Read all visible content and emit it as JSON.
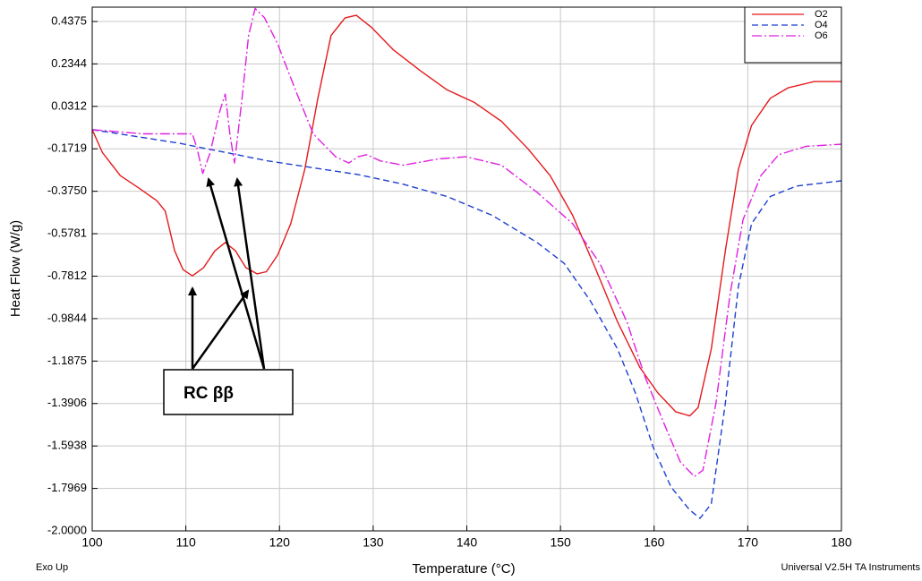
{
  "chart_data": {
    "type": "line",
    "x_label": "Temperature (°C)",
    "y_label": "Heat Flow (W/g)",
    "footer_left": "Exo Up",
    "footer_right": "Universal V2.5H TA Instruments",
    "annotation": "RC ββ",
    "xlim": [
      100,
      180
    ],
    "ylim": [
      -2.0,
      0.506
    ],
    "xticks": [
      100,
      110,
      120,
      130,
      140,
      150,
      160,
      170,
      180
    ],
    "yticks": [
      0.4375,
      0.2344,
      0.0312,
      -0.1719,
      {
        "value": -0.375,
        "label": "-0.3750"
      },
      -0.5781,
      -0.7812,
      -0.9844,
      -1.1875,
      -1.3906,
      -1.5938,
      -1.7969,
      {
        "value": -2.0,
        "label": "-2.0000"
      }
    ],
    "grid": true,
    "legend": "upper right",
    "series": [
      {
        "name": "O2",
        "color": "#e41a1c",
        "dash": "solid",
        "x": [
          100,
          101.1,
          103,
          105,
          106.9,
          107.8,
          108.8,
          109.7,
          110.7,
          111.9,
          113.1,
          114.2,
          115.3,
          116.4,
          117.6,
          118.6,
          119.8,
          121.2,
          122.7,
          124.1,
          125.5,
          127,
          128.2,
          129.8,
          132.2,
          135.1,
          137.9,
          140.8,
          143.7,
          146.5,
          148.9,
          151.3,
          153.7,
          156.1,
          158.5,
          160.4,
          162.3,
          163.8,
          164.7,
          166.1,
          167.6,
          169,
          170.4,
          172.4,
          174.3,
          177.1,
          180
        ],
        "values": [
          -0.08,
          -0.19,
          -0.3,
          -0.36,
          -0.42,
          -0.47,
          -0.66,
          -0.75,
          -0.78,
          -0.74,
          -0.66,
          -0.62,
          -0.66,
          -0.74,
          -0.77,
          -0.76,
          -0.68,
          -0.53,
          -0.27,
          0.07,
          0.37,
          0.455,
          0.467,
          0.41,
          0.3,
          0.2,
          0.11,
          0.05,
          -0.04,
          -0.17,
          -0.3,
          -0.49,
          -0.74,
          -1.0,
          -1.22,
          -1.34,
          -1.43,
          -1.45,
          -1.41,
          -1.13,
          -0.66,
          -0.27,
          -0.06,
          0.07,
          0.12,
          0.15,
          0.15
        ]
      },
      {
        "name": "O4",
        "color": "#1f3fd0",
        "dash": "dashed",
        "x": [
          100,
          109.3,
          118.8,
          128.4,
          133.1,
          137.9,
          142.7,
          147.5,
          150.4,
          153.2,
          156.1,
          158,
          159.9,
          161.8,
          163.8,
          164.9,
          166.1,
          167.6,
          169,
          170.4,
          172.4,
          175.2,
          180
        ],
        "values": [
          -0.08,
          -0.145,
          -0.23,
          -0.295,
          -0.34,
          -0.4,
          -0.49,
          -0.62,
          -0.72,
          -0.9,
          -1.13,
          -1.34,
          -1.6,
          -1.79,
          -1.9,
          -1.94,
          -1.87,
          -1.39,
          -0.83,
          -0.53,
          -0.4,
          -0.35,
          -0.325
        ]
      },
      {
        "name": "O6",
        "color": "#e020e0",
        "dash": "dashdot",
        "x": [
          100,
          105.4,
          110.7,
          111.2,
          111.8,
          112.6,
          113.6,
          114.2,
          114.7,
          115.2,
          116,
          116.7,
          117.4,
          118.4,
          119.8,
          121.7,
          123.6,
          126,
          127.4,
          128.4,
          129.3,
          130.8,
          133.2,
          137,
          139.9,
          143.7,
          147.5,
          151.3,
          154.2,
          157.1,
          159,
          160.9,
          162.8,
          164.3,
          165.2,
          166.6,
          168.1,
          169.5,
          171.4,
          173.3,
          176.2,
          180
        ],
        "values": [
          -0.08,
          -0.1,
          -0.1,
          -0.17,
          -0.29,
          -0.19,
          0.005,
          0.09,
          -0.1,
          -0.24,
          0.07,
          0.37,
          0.5,
          0.455,
          0.33,
          0.11,
          -0.1,
          -0.21,
          -0.24,
          -0.21,
          -0.2,
          -0.23,
          -0.25,
          -0.22,
          -0.21,
          -0.25,
          -0.38,
          -0.53,
          -0.72,
          -1.0,
          -1.26,
          -1.47,
          -1.67,
          -1.74,
          -1.71,
          -1.39,
          -0.87,
          -0.51,
          -0.3,
          -0.2,
          -0.16,
          -0.15
        ]
      }
    ]
  }
}
